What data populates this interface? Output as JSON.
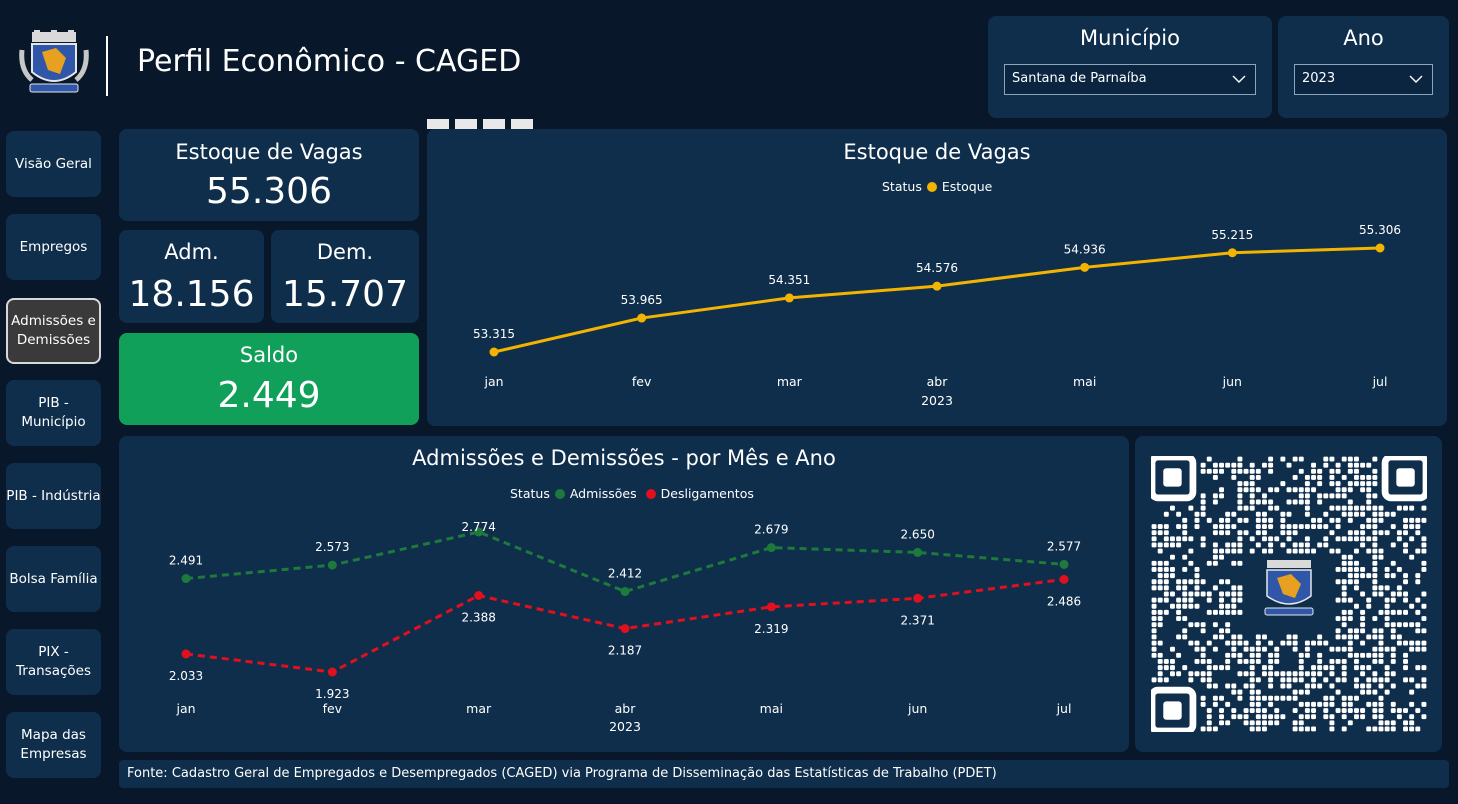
{
  "header": {
    "title": "Perfil Econômico - CAGED",
    "logo_icon": "municipal-coat-of-arms"
  },
  "filters": {
    "municipio_label": "Município",
    "municipio_value": "Santana de Parnaíba",
    "ano_label": "Ano",
    "ano_value": "2023"
  },
  "nav": {
    "items": [
      {
        "label": "Visão Geral"
      },
      {
        "label": "Empregos"
      },
      {
        "label": "Admissões e Demissões"
      },
      {
        "label": "PIB - Município"
      },
      {
        "label": "PIB - Indústria"
      },
      {
        "label": "Bolsa Família"
      },
      {
        "label": "PIX - Transações"
      },
      {
        "label": "Mapa das Empresas"
      }
    ],
    "active": "Admissões e Demissões"
  },
  "kpis": {
    "estoque_label": "Estoque de Vagas",
    "estoque_value": "55.306",
    "adm_label": "Adm.",
    "adm_value": "18.156",
    "dem_label": "Dem.",
    "dem_value": "15.707",
    "saldo_label": "Saldo",
    "saldo_value": "2.449"
  },
  "colors": {
    "background": "#08182a",
    "panel": "#0f2e4b",
    "saldo": "#10a05a",
    "estoque_line": "#f2b400",
    "admissoes": "#1e7a3c",
    "desligamentos": "#e0101e"
  },
  "chart_data": [
    {
      "type": "line",
      "title": "Estoque de Vagas",
      "legend_title": "Status",
      "categories": [
        "jan",
        "fev",
        "mar",
        "abr",
        "mai",
        "jun",
        "jul"
      ],
      "x_group_label": "2023",
      "series": [
        {
          "name": "Estoque",
          "values": [
            53315,
            53965,
            54351,
            54576,
            54936,
            55215,
            55306
          ],
          "labels": [
            "53.315",
            "53.965",
            "54.351",
            "54.576",
            "54.936",
            "55.215",
            "55.306"
          ],
          "color": "#f2b400"
        }
      ],
      "legend_position": "top-center",
      "grid": false
    },
    {
      "type": "line",
      "title": "Admissões e Demissões - por Mês e Ano",
      "legend_title": "Status",
      "categories": [
        "jan",
        "fev",
        "mar",
        "abr",
        "mai",
        "jun",
        "jul"
      ],
      "x_group_label": "2023",
      "series": [
        {
          "name": "Admissões",
          "values": [
            2491,
            2573,
            2774,
            2412,
            2679,
            2650,
            2577
          ],
          "labels": [
            "2.491",
            "2.573",
            "2.774",
            "2.412",
            "2.679",
            "2.650",
            "2.577"
          ],
          "color": "#1e7a3c",
          "dashed": true
        },
        {
          "name": "Desligamentos",
          "values": [
            2033,
            1923,
            2388,
            2187,
            2319,
            2371,
            2486
          ],
          "labels": [
            "2.033",
            "1.923",
            "2.388",
            "2.187",
            "2.319",
            "2.371",
            "2.486"
          ],
          "color": "#e0101e",
          "dashed": true
        }
      ],
      "legend_position": "top-center",
      "grid": false
    }
  ],
  "qr": {
    "icon": "qr-code-icon"
  },
  "footer": {
    "source": "Fonte: Cadastro Geral de Empregados e Desempregados (CAGED) via Programa de Disseminação das Estatísticas de Trabalho (PDET)"
  }
}
